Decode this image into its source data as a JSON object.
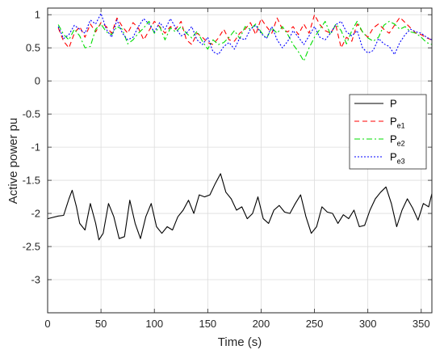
{
  "chart_data": {
    "type": "line",
    "xlabel": "Time (s)",
    "ylabel": "Active power pu",
    "xlim": [
      0,
      360
    ],
    "ylim": [
      -3.5,
      1.1
    ],
    "xticks": [
      0,
      50,
      100,
      150,
      200,
      250,
      300,
      350
    ],
    "yticks": [
      1,
      0.5,
      0,
      -0.5,
      -1,
      -1.5,
      -2,
      -2.5,
      -3
    ],
    "ytick_labels": [
      "1",
      "0.5",
      "0",
      "-0.5",
      "-1",
      "-1.5",
      "-2",
      "-2.5",
      "-3"
    ],
    "grid": true,
    "legend_position": "right",
    "legend": [
      {
        "base": "P",
        "sub": "",
        "color": "#000000",
        "dash": ""
      },
      {
        "base": "P",
        "sub": "e1",
        "color": "#ff0000",
        "dash": "6,4"
      },
      {
        "base": "P",
        "sub": "e2",
        "color": "#00dd00",
        "dash": "7,3,2,3"
      },
      {
        "base": "P",
        "sub": "e3",
        "color": "#0000ff",
        "dash": "2,2"
      }
    ],
    "series": [
      {
        "name": "P",
        "color": "#000000",
        "x": [
          0,
          10,
          15,
          20,
          23,
          27,
          30,
          35,
          40,
          45,
          48,
          52,
          57,
          62,
          67,
          72,
          77,
          82,
          87,
          92,
          97,
          102,
          107,
          112,
          117,
          122,
          127,
          132,
          137,
          142,
          147,
          152,
          157,
          162,
          167,
          172,
          177,
          182,
          187,
          192,
          197,
          202,
          207,
          212,
          217,
          222,
          227,
          232,
          237,
          242,
          247,
          252,
          257,
          262,
          267,
          272,
          277,
          282,
          287,
          292,
          297,
          302,
          307,
          312,
          317,
          322,
          327,
          332,
          337,
          342,
          347,
          352,
          357,
          360
        ],
        "y": [
          -2.08,
          -2.04,
          -2.03,
          -1.78,
          -1.65,
          -1.9,
          -2.15,
          -2.25,
          -1.85,
          -2.15,
          -2.4,
          -2.3,
          -1.85,
          -2.05,
          -2.38,
          -2.35,
          -1.8,
          -2.15,
          -2.38,
          -2.05,
          -1.85,
          -2.2,
          -2.3,
          -2.2,
          -2.25,
          -2.05,
          -1.95,
          -1.8,
          -2.0,
          -1.72,
          -1.75,
          -1.72,
          -1.55,
          -1.4,
          -1.68,
          -1.78,
          -1.95,
          -1.9,
          -2.08,
          -2.0,
          -1.75,
          -2.08,
          -2.15,
          -1.95,
          -1.88,
          -1.98,
          -2.0,
          -1.85,
          -1.72,
          -2.05,
          -2.3,
          -2.2,
          -1.9,
          -1.98,
          -2.0,
          -2.15,
          -2.02,
          -2.08,
          -1.95,
          -2.2,
          -2.18,
          -1.95,
          -1.78,
          -1.68,
          -1.6,
          -1.85,
          -2.2,
          -1.95,
          -1.78,
          -1.92,
          -2.1,
          -1.85,
          -1.9,
          -1.7
        ]
      },
      {
        "name": "Pe1",
        "color": "#ff0000",
        "x": [
          10,
          15,
          20,
          25,
          30,
          35,
          40,
          45,
          50,
          55,
          60,
          65,
          70,
          75,
          80,
          85,
          90,
          95,
          100,
          105,
          110,
          115,
          120,
          125,
          130,
          135,
          140,
          145,
          150,
          155,
          160,
          165,
          170,
          175,
          180,
          185,
          190,
          195,
          200,
          205,
          210,
          215,
          220,
          225,
          230,
          235,
          240,
          245,
          250,
          255,
          260,
          265,
          270,
          275,
          280,
          285,
          290,
          295,
          300,
          305,
          310,
          315,
          320,
          325,
          330,
          335,
          340,
          345,
          350,
          355,
          360
        ],
        "y": [
          0.8,
          0.6,
          0.5,
          0.72,
          0.82,
          0.66,
          0.86,
          0.74,
          0.88,
          0.82,
          0.72,
          0.95,
          0.82,
          0.72,
          0.88,
          0.8,
          0.62,
          0.76,
          0.9,
          0.82,
          0.72,
          0.82,
          0.78,
          0.9,
          0.62,
          0.55,
          0.72,
          0.66,
          0.58,
          0.55,
          0.65,
          0.78,
          0.62,
          0.6,
          0.72,
          0.78,
          0.88,
          0.7,
          0.94,
          0.82,
          0.72,
          0.95,
          0.78,
          0.74,
          0.82,
          0.7,
          0.86,
          0.72,
          1.0,
          0.85,
          0.76,
          0.72,
          0.84,
          0.5,
          0.66,
          0.6,
          0.86,
          0.74,
          0.66,
          0.8,
          0.86,
          0.78,
          0.72,
          0.84,
          0.96,
          0.88,
          0.8,
          0.72,
          0.7,
          0.65,
          0.62
        ]
      },
      {
        "name": "Pe2",
        "color": "#00dd00",
        "x": [
          10,
          15,
          20,
          25,
          30,
          35,
          40,
          45,
          50,
          55,
          60,
          65,
          70,
          75,
          80,
          85,
          90,
          95,
          100,
          105,
          110,
          115,
          120,
          125,
          130,
          135,
          140,
          145,
          150,
          155,
          160,
          165,
          170,
          175,
          180,
          185,
          190,
          195,
          200,
          205,
          210,
          215,
          220,
          225,
          230,
          235,
          240,
          245,
          250,
          255,
          260,
          265,
          270,
          275,
          280,
          285,
          290,
          295,
          300,
          305,
          310,
          315,
          320,
          325,
          330,
          335,
          340,
          345,
          350,
          355,
          360
        ],
        "y": [
          0.85,
          0.7,
          0.62,
          0.78,
          0.68,
          0.5,
          0.52,
          0.78,
          0.86,
          0.74,
          0.7,
          0.82,
          0.78,
          0.56,
          0.62,
          0.72,
          0.8,
          0.9,
          0.72,
          0.82,
          0.62,
          0.8,
          0.74,
          0.82,
          0.72,
          0.65,
          0.75,
          0.6,
          0.48,
          0.62,
          0.55,
          0.58,
          0.66,
          0.76,
          0.64,
          0.82,
          0.78,
          0.86,
          0.74,
          0.64,
          0.8,
          0.72,
          0.82,
          0.7,
          0.55,
          0.44,
          0.3,
          0.5,
          0.66,
          0.78,
          0.9,
          0.7,
          0.86,
          0.76,
          0.56,
          0.76,
          0.9,
          0.74,
          0.65,
          0.6,
          0.66,
          0.84,
          0.9,
          0.86,
          0.78,
          0.82,
          0.74,
          0.72,
          0.66,
          0.58,
          0.55
        ]
      },
      {
        "name": "Pe3",
        "color": "#0000ff",
        "x": [
          10,
          15,
          20,
          25,
          30,
          35,
          40,
          45,
          50,
          55,
          60,
          65,
          70,
          75,
          80,
          85,
          90,
          95,
          100,
          105,
          110,
          115,
          120,
          125,
          130,
          135,
          140,
          145,
          150,
          155,
          160,
          165,
          170,
          175,
          180,
          185,
          190,
          195,
          200,
          205,
          210,
          215,
          220,
          225,
          230,
          235,
          240,
          245,
          250,
          255,
          260,
          265,
          270,
          275,
          280,
          285,
          290,
          295,
          300,
          305,
          310,
          315,
          320,
          325,
          330,
          335,
          340,
          345,
          350,
          355,
          360
        ],
        "y": [
          0.82,
          0.64,
          0.7,
          0.84,
          0.78,
          0.72,
          0.92,
          0.86,
          1.02,
          0.78,
          0.66,
          0.92,
          0.72,
          0.62,
          0.66,
          0.82,
          0.94,
          0.86,
          0.74,
          0.88,
          0.78,
          0.94,
          0.8,
          0.68,
          0.72,
          0.82,
          0.62,
          0.55,
          0.66,
          0.44,
          0.4,
          0.52,
          0.58,
          0.48,
          0.65,
          0.62,
          0.78,
          0.84,
          0.72,
          0.64,
          0.82,
          0.62,
          0.5,
          0.6,
          0.76,
          0.66,
          0.55,
          0.68,
          0.82,
          0.66,
          0.62,
          0.72,
          0.85,
          0.9,
          0.74,
          0.68,
          0.76,
          0.5,
          0.42,
          0.46,
          0.64,
          0.56,
          0.52,
          0.4,
          0.58,
          0.7,
          0.78,
          0.74,
          0.72,
          0.66,
          0.62
        ]
      }
    ]
  }
}
